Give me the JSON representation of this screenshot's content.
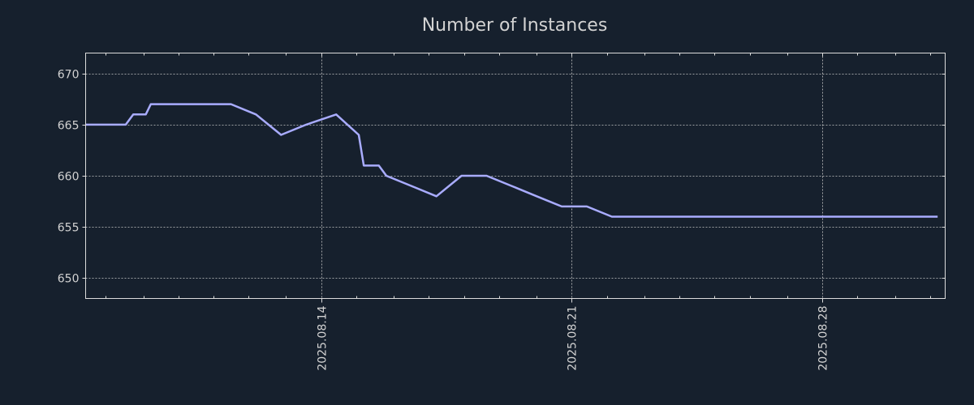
{
  "colors": {
    "background": "#16202d",
    "axes": "#dcdcdc",
    "grid": "#c8c8c8",
    "line": "#a9acff",
    "text": "#d2d2d2"
  },
  "chart_data": {
    "type": "line",
    "title": "Number of Instances",
    "xlabel": "",
    "ylabel": "",
    "xlim": [
      -9.4,
      24.9
    ],
    "ylim": [
      648,
      672
    ],
    "grid": true,
    "legend": "none",
    "x_tick_values": [
      0,
      10,
      20
    ],
    "x_tick_labels": [
      "2025.08.14",
      "2025.08.21",
      "2025.08.28"
    ],
    "y_tick_values": [
      650,
      655,
      660,
      665,
      670
    ],
    "y_tick_labels": [
      "650",
      "655",
      "660",
      "665",
      "670"
    ],
    "minor_x_ticks": [
      -8.6,
      -7.1,
      -5.7,
      -4.3,
      -2.9,
      -1.4,
      1.4,
      2.9,
      4.3,
      5.7,
      7.1,
      8.6,
      11.4,
      12.9,
      14.3,
      15.7,
      17.1,
      18.6,
      21.4,
      22.9,
      24.3
    ],
    "series": [
      {
        "name": "instances",
        "x": [
          -9.4,
          -7.8,
          -7.5,
          -7.0,
          -6.8,
          -6.6,
          -5.6,
          -4.6,
          -3.6,
          -2.6,
          -1.6,
          -0.6,
          0.6,
          1.5,
          1.7,
          2.3,
          2.6,
          3.6,
          4.6,
          5.6,
          6.6,
          7.6,
          8.6,
          9.6,
          10.6,
          11.6,
          12.6,
          13.6,
          14.6,
          15.6,
          16.6,
          17.6,
          18.6,
          19.6,
          20.6,
          21.6,
          22.6,
          23.6,
          24.6
        ],
        "y": [
          665,
          665,
          666,
          666,
          667,
          667,
          667,
          667,
          667,
          666,
          664,
          665,
          666,
          664,
          661,
          661,
          660,
          659,
          658,
          660,
          660,
          659,
          658,
          657,
          657,
          656,
          656,
          656,
          656,
          656,
          656,
          656,
          656,
          656,
          656,
          656,
          656,
          656,
          656
        ]
      }
    ]
  }
}
